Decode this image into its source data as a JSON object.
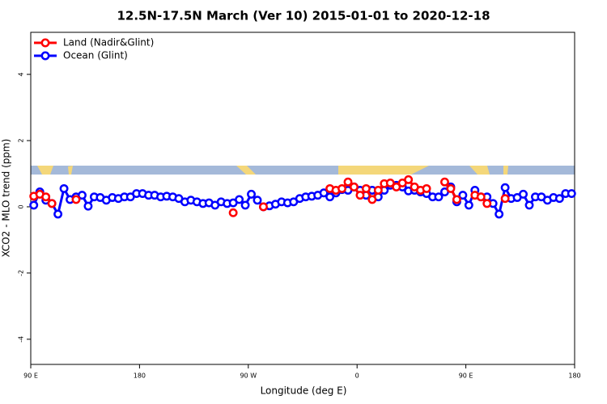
{
  "chart_data": {
    "type": "line",
    "title": "12.5N-17.5N March (Ver 10)   2015-01-01 to 2020-12-18",
    "x_label": "Longitude (deg E)",
    "y_label": "XCO2 - MLO trend (ppm)",
    "x": [
      92.5,
      97.5,
      102.5,
      107.5,
      112.5,
      117.5,
      122.5,
      127.5,
      132.5,
      137.5,
      142.5,
      147.5,
      152.5,
      157.5,
      162.5,
      167.5,
      172.5,
      177.5,
      182.5,
      187.5,
      192.5,
      197.5,
      202.5,
      207.5,
      212.5,
      217.5,
      222.5,
      227.5,
      232.5,
      237.5,
      242.5,
      247.5,
      252.5,
      257.5,
      262.5,
      267.5,
      272.5,
      277.5,
      282.5,
      287.5,
      292.5,
      297.5,
      302.5,
      307.5,
      312.5,
      317.5,
      322.5,
      327.5,
      332.5,
      337.5,
      342.5,
      347.5,
      352.5,
      357.5,
      362.5,
      367.5,
      372.5,
      377.5,
      382.5,
      387.5,
      392.5,
      397.5,
      402.5,
      407.5,
      412.5,
      417.5,
      422.5,
      427.5,
      432.5,
      437.5,
      442.5,
      447.5,
      452.5,
      457.5,
      462.5,
      467.5,
      472.5,
      477.5,
      482.5,
      487.5,
      492.5,
      497.5,
      502.5,
      507.5,
      512.5,
      517.5,
      522.5,
      527.5,
      532.5,
      537.5
    ],
    "series": [
      {
        "name": "Land (Nadir&Glint)",
        "color": "#ff0000",
        "values": [
          0.32,
          0.38,
          0.3,
          0.1,
          null,
          null,
          null,
          0.22,
          null,
          null,
          null,
          null,
          null,
          null,
          null,
          null,
          null,
          null,
          null,
          null,
          null,
          null,
          null,
          null,
          null,
          null,
          null,
          null,
          null,
          null,
          null,
          null,
          null,
          -0.18,
          null,
          null,
          null,
          null,
          0.0,
          null,
          null,
          null,
          null,
          null,
          null,
          null,
          null,
          null,
          null,
          0.55,
          0.5,
          0.55,
          0.75,
          0.6,
          0.35,
          0.55,
          0.22,
          0.5,
          0.7,
          0.72,
          0.6,
          0.72,
          0.82,
          0.6,
          0.5,
          0.55,
          null,
          null,
          0.75,
          0.55,
          0.22,
          null,
          null,
          0.35,
          0.3,
          0.1,
          null,
          null,
          0.25,
          null,
          null,
          null,
          null,
          null,
          null,
          null,
          null,
          null,
          null,
          null
        ]
      },
      {
        "name": "Ocean (Glint)",
        "color": "#0000ff",
        "values": [
          0.05,
          0.45,
          0.2,
          0.1,
          -0.22,
          0.55,
          0.22,
          0.3,
          0.35,
          0.02,
          0.3,
          0.28,
          0.2,
          0.28,
          0.25,
          0.3,
          0.3,
          0.4,
          0.4,
          0.35,
          0.35,
          0.3,
          0.32,
          0.3,
          0.25,
          0.15,
          0.2,
          0.15,
          0.1,
          0.12,
          0.05,
          0.15,
          0.1,
          0.12,
          0.22,
          0.05,
          0.38,
          0.2,
          0.0,
          0.03,
          0.08,
          0.15,
          0.12,
          0.15,
          0.25,
          0.3,
          0.32,
          0.35,
          0.42,
          0.3,
          0.42,
          0.52,
          0.5,
          0.6,
          0.5,
          0.35,
          0.5,
          0.3,
          0.5,
          0.65,
          0.65,
          0.6,
          0.48,
          0.5,
          0.45,
          0.4,
          0.3,
          0.3,
          0.45,
          0.6,
          0.15,
          0.35,
          0.05,
          0.5,
          0.3,
          0.3,
          0.1,
          -0.22,
          0.58,
          0.25,
          0.28,
          0.38,
          0.05,
          0.3,
          0.3,
          0.2,
          0.28,
          0.25,
          0.4,
          0.4
        ]
      }
    ],
    "xlim": [
      90,
      540
    ],
    "xticks": [
      {
        "value": 90,
        "label": "90 E"
      },
      180,
      {
        "value": 270,
        "label": "90 W"
      },
      {
        "value": 360,
        "label": "0"
      },
      {
        "value": 450,
        "label": "90 E"
      },
      {
        "value": 540,
        "label": "180"
      }
    ],
    "ylim": [
      -4.76,
      5.27
    ],
    "yticks": [
      -4,
      -2,
      0,
      2,
      4
    ],
    "legend": "upper left"
  }
}
